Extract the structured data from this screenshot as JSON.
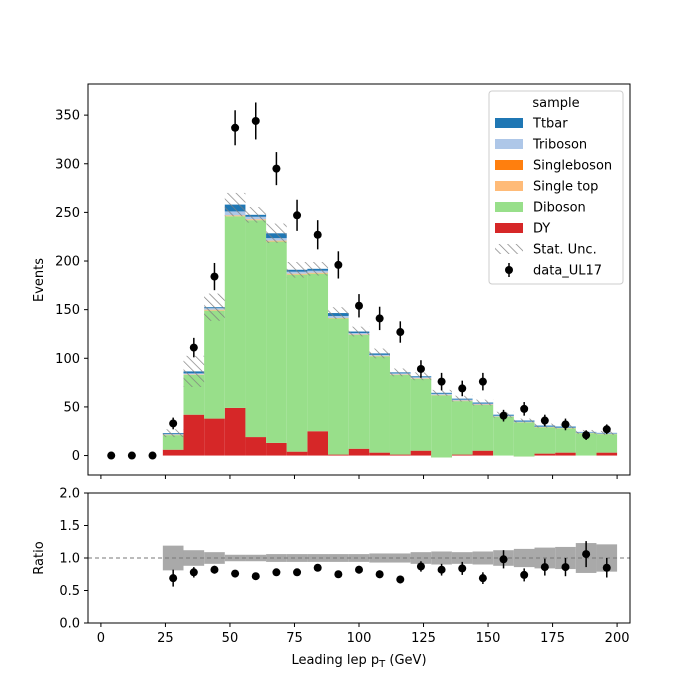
{
  "chart_data": [
    {
      "type": "bar",
      "subtype": "stacked-histogram",
      "title": "",
      "xlabel": "",
      "ylabel": "Events",
      "xlim": [
        -5,
        205
      ],
      "ylim": [
        -20,
        382
      ],
      "yticks": [
        0,
        50,
        100,
        150,
        200,
        250,
        300,
        350
      ],
      "xticks": [
        0,
        25,
        50,
        75,
        100,
        125,
        150,
        175,
        200
      ],
      "x_tick_labels_visible": false,
      "grid": false,
      "legend": {
        "title": "sample",
        "placement": "top-right",
        "entries": [
          "Ttbar",
          "Triboson",
          "Singleboson",
          "Single top",
          "Diboson",
          "DY",
          "Stat. Unc.",
          "data_UL17"
        ]
      },
      "bin_edges": [
        24,
        32,
        40,
        48,
        56,
        64,
        72,
        80,
        88,
        96,
        104,
        112,
        120,
        128,
        136,
        144,
        152,
        160,
        168,
        176,
        184,
        192,
        200
      ],
      "series": [
        {
          "name": "DY",
          "color": "#d62728",
          "values": [
            6,
            42,
            38,
            49,
            19,
            13,
            4,
            25,
            1,
            7,
            3,
            1,
            5,
            -2,
            1,
            5,
            0,
            -1,
            2,
            3,
            0,
            3
          ]
        },
        {
          "name": "Diboson",
          "color": "#98df8a",
          "values": [
            15,
            41,
            111,
            197,
            223,
            207,
            182,
            162,
            140,
            117,
            99,
            82,
            74,
            64,
            55,
            47,
            40,
            35,
            27,
            25,
            23,
            19
          ]
        },
        {
          "name": "Single top",
          "color": "#ffbb78",
          "values": [
            0.5,
            0.5,
            1,
            1,
            1,
            1,
            1,
            1,
            0.5,
            0.5,
            0.5,
            0.5,
            0.5,
            0.5,
            0.5,
            0.5,
            0.3,
            0.3,
            0.3,
            0.3,
            0.3,
            0.3
          ]
        },
        {
          "name": "Singleboson",
          "color": "#ff7f0e",
          "values": [
            0,
            0,
            0,
            0,
            0,
            0,
            0,
            0,
            0,
            0,
            0,
            0,
            0,
            0,
            0,
            0,
            0,
            0,
            0,
            0,
            0,
            0
          ]
        },
        {
          "name": "Triboson",
          "color": "#aec7e8",
          "values": [
            0.5,
            1,
            1.5,
            4,
            2.5,
            2.5,
            2,
            2,
            2,
            1.5,
            1,
            1,
            1,
            1,
            1,
            1,
            0.7,
            0.7,
            0.5,
            0.5,
            0.5,
            0.5
          ]
        },
        {
          "name": "Ttbar",
          "color": "#1f77b4",
          "values": [
            1,
            2,
            1,
            7,
            2,
            5,
            2,
            2,
            3,
            1.5,
            1.5,
            1,
            1,
            1,
            1,
            1,
            1,
            1,
            1,
            1,
            0.5,
            0.5
          ]
        }
      ],
      "stat_unc": [
        4,
        16,
        14,
        12,
        8,
        10,
        8,
        7,
        6,
        5,
        5,
        4,
        4,
        3,
        3,
        3,
        3,
        2,
        2,
        2,
        2,
        2
      ],
      "data": {
        "name": "data_UL17",
        "x": [
          4,
          12,
          20,
          28,
          36,
          44,
          52,
          60,
          68,
          76,
          84,
          92,
          100,
          108,
          116,
          124,
          132,
          140,
          148,
          156,
          164,
          172,
          180,
          188,
          196
        ],
        "y": [
          0,
          0,
          0,
          33,
          111,
          184,
          337,
          344,
          295,
          247,
          227,
          196,
          154,
          141,
          127,
          89,
          76,
          69,
          76,
          41,
          48,
          36,
          32,
          21,
          27
        ],
        "yerr": [
          0,
          0,
          0,
          6,
          10,
          14,
          18,
          19,
          17,
          16,
          15,
          14,
          12,
          12,
          11,
          9,
          9,
          8,
          9,
          6,
          7,
          6,
          6,
          5,
          5
        ]
      }
    },
    {
      "type": "scatter",
      "subtype": "ratio-panel",
      "title": "",
      "xlabel": "Leading lep p",
      "xlabel_sub": "T",
      "xlabel_unit": " (GeV)",
      "ylabel": "Ratio",
      "xlim": [
        -5,
        205
      ],
      "ylim": [
        0,
        2
      ],
      "yticks": [
        0.0,
        0.5,
        1.0,
        1.5,
        2.0
      ],
      "ytick_labels": [
        "0.0",
        "0.5",
        "1.0",
        "1.5",
        "2.0"
      ],
      "xticks": [
        0,
        25,
        50,
        75,
        100,
        125,
        150,
        175,
        200
      ],
      "xtick_labels": [
        "0",
        "25",
        "50",
        "75",
        "100",
        "125",
        "150",
        "175",
        "200"
      ],
      "reference_line": 1.0,
      "band_edges": [
        24,
        32,
        40,
        48,
        56,
        64,
        72,
        80,
        88,
        96,
        104,
        112,
        120,
        128,
        136,
        144,
        152,
        160,
        168,
        176,
        184,
        192,
        200
      ],
      "band_halfwidth": [
        0.19,
        0.12,
        0.09,
        0.05,
        0.05,
        0.06,
        0.06,
        0.06,
        0.06,
        0.06,
        0.07,
        0.07,
        0.09,
        0.1,
        0.09,
        0.1,
        0.12,
        0.14,
        0.16,
        0.17,
        0.23,
        0.21
      ],
      "x": [
        28,
        36,
        44,
        52,
        60,
        68,
        76,
        84,
        92,
        100,
        108,
        116,
        124,
        132,
        140,
        148,
        156,
        164,
        172,
        180,
        188,
        196
      ],
      "y": [
        0.69,
        0.78,
        0.82,
        0.76,
        0.72,
        0.78,
        0.78,
        0.85,
        0.75,
        0.82,
        0.75,
        0.67,
        0.87,
        0.82,
        0.84,
        0.69,
        0.98,
        0.74,
        0.86,
        0.86,
        1.06,
        0.85
      ],
      "yerr": [
        0.13,
        0.08,
        0.06,
        0.04,
        0.04,
        0.04,
        0.05,
        0.05,
        0.05,
        0.06,
        0.06,
        0.06,
        0.08,
        0.09,
        0.1,
        0.09,
        0.14,
        0.1,
        0.13,
        0.14,
        0.2,
        0.15
      ]
    }
  ]
}
